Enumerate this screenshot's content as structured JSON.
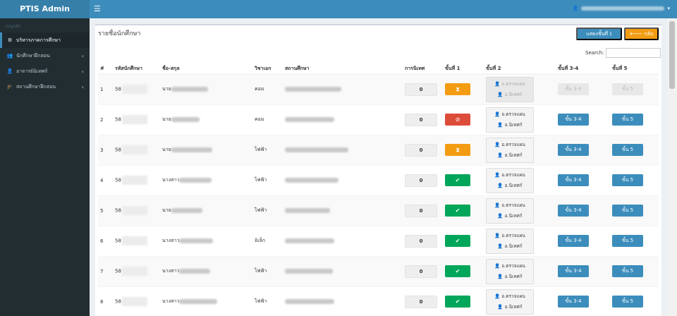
{
  "app": {
    "brand": "PTIS Admin"
  },
  "navbar": {
    "menu_icon": "☰",
    "user_icon": "👤",
    "caret": "▾"
  },
  "sidebar": {
    "header": "เมนูหลัก",
    "items": [
      {
        "label": "บริหารภาคการศึกษา",
        "icon": "⚙",
        "active": true,
        "chevron": ""
      },
      {
        "label": "นักศึกษาฝึกสอน",
        "icon": "👥",
        "active": false,
        "chevron": "‹"
      },
      {
        "label": "อาจารย์นิเทศก์",
        "icon": "👤",
        "active": false,
        "chevron": "‹"
      },
      {
        "label": "สถานศึกษาฝึกสอน",
        "icon": "🎓",
        "active": false,
        "chevron": "‹"
      }
    ]
  },
  "page": {
    "title": "รายชื่อนักศึกษา",
    "show_step1_label": "แสดงชั้นที่ 1",
    "back_label": "🡐 กลับ",
    "search_label": "Search:",
    "search_value": ""
  },
  "table": {
    "columns": [
      "#",
      "รหัสนักศึกษา",
      "ชื่อ-สกุล",
      "วิชาเอก",
      "สถานศึกษา",
      "การนิเทศ",
      "ขั้นที่ 1",
      "ขั้นที่ 2",
      "ขั้นที่ 3-4",
      "ขั้นที่ 5"
    ],
    "labels": {
      "advisor": "อ.ตรวจแผน",
      "supervisor": "อ.นิเทศก์",
      "step34": "ขั้น 3-4",
      "step5": "ขั้น 5",
      "person_icon": "👤"
    },
    "rows": [
      {
        "no": "1",
        "id_prefix": "58",
        "title": "นาย",
        "major": "คอม",
        "score": "0",
        "step1": "pending",
        "step1_icon": "⧗",
        "enabled": false
      },
      {
        "no": "2",
        "id_prefix": "58",
        "title": "นาย",
        "major": "คอม",
        "score": "0",
        "step1": "rejected",
        "step1_icon": "⊘",
        "enabled": true
      },
      {
        "no": "3",
        "id_prefix": "58",
        "title": "นาย",
        "major": "ไฟฟ้า",
        "score": "0",
        "step1": "pending",
        "step1_icon": "⧗",
        "enabled": true
      },
      {
        "no": "4",
        "id_prefix": "58",
        "title": "นางสาว",
        "major": "ไฟฟ้า",
        "score": "0",
        "step1": "approved",
        "step1_icon": "✔",
        "enabled": true
      },
      {
        "no": "5",
        "id_prefix": "58",
        "title": "นาย",
        "major": "ไฟฟ้า",
        "score": "0",
        "step1": "approved",
        "step1_icon": "✔",
        "enabled": true
      },
      {
        "no": "6",
        "id_prefix": "58",
        "title": "นางสาว",
        "major": "อิเล็ก",
        "score": "0",
        "step1": "approved",
        "step1_icon": "✔",
        "enabled": true
      },
      {
        "no": "7",
        "id_prefix": "58",
        "title": "นางสาว",
        "major": "ไฟฟ้า",
        "score": "0",
        "step1": "approved",
        "step1_icon": "✔",
        "enabled": true
      },
      {
        "no": "8",
        "id_prefix": "58",
        "title": "นางสาว",
        "major": "ไฟฟ้า",
        "score": "0",
        "step1": "approved",
        "step1_icon": "✔",
        "enabled": true
      }
    ]
  },
  "colors": {
    "primary": "#3c8dbc",
    "warning": "#f39c12",
    "danger": "#dd4b39",
    "success": "#00a65a",
    "sidebar": "#222d32"
  }
}
